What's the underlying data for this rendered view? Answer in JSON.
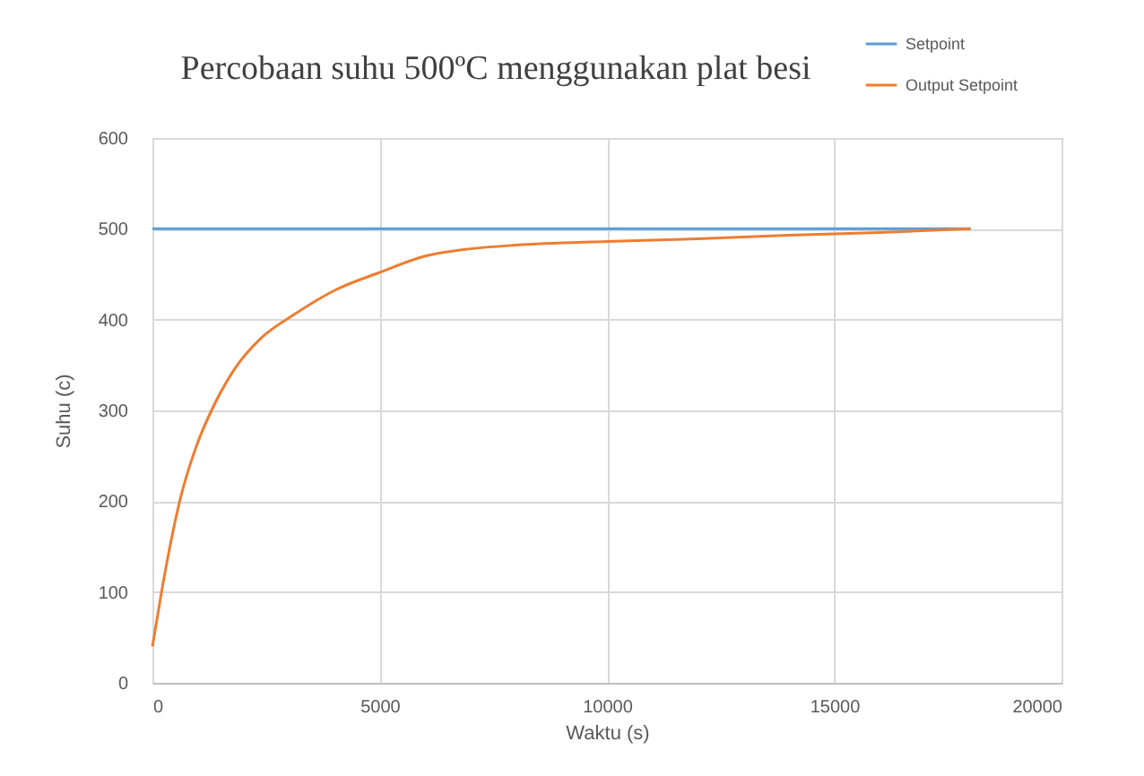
{
  "chart_data": {
    "type": "line",
    "title": "Percobaan suhu 500ºC menggunakan plat besi",
    "xlabel": "Waktu (s)",
    "ylabel": "Suhu (c)",
    "xlim": [
      0,
      20000
    ],
    "xticks": [
      0,
      5000,
      10000,
      15000,
      20000
    ],
    "ylim": [
      0,
      600
    ],
    "yticks": [
      0,
      100,
      200,
      300,
      400,
      500,
      600
    ],
    "grid": true,
    "legend": "top right",
    "series": [
      {
        "name": "Setpoint",
        "color": "#5b9bd5",
        "x": [
          0,
          18000
        ],
        "values": [
          500,
          500
        ]
      },
      {
        "name": "Output Setpoint",
        "color": "#ed7d31",
        "x": [
          0,
          200,
          600,
          1000,
          1300,
          1800,
          2400,
          3100,
          4000,
          5000,
          6000,
          7000,
          8000,
          10000,
          12000,
          14000,
          16000,
          18000
        ],
        "values": [
          40,
          100,
          200,
          265,
          300,
          345,
          380,
          405,
          432,
          452,
          470,
          478,
          482,
          486,
          489,
          493,
          496,
          500
        ]
      }
    ]
  }
}
